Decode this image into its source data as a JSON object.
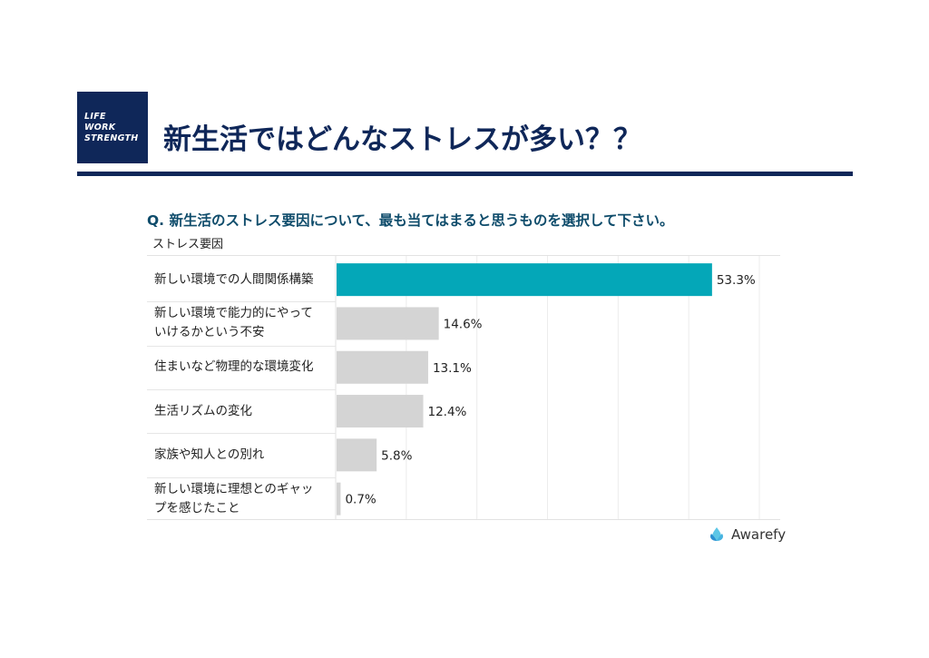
{
  "logo": {
    "lines": [
      "LIFE",
      "WORK",
      "STRENGTH"
    ]
  },
  "title": "新生活ではどんなストレスが多い？？",
  "question": "Q. 新生活のストレス要因について、最も当てはまると思うものを選択して下さい。",
  "chart_data": {
    "type": "bar",
    "orientation": "horizontal",
    "column_header": "ストレス要因",
    "categories": [
      "新しい環境での人間関係構築",
      "新しい環境で能力的にやって\nいけるかという不安",
      "住まいなど物理的な環境変化",
      "生活リズムの変化",
      "家族や知人との別れ",
      "新しい環境に理想とのギャッ\nプを感じたこと"
    ],
    "values": [
      53.3,
      14.6,
      13.1,
      12.4,
      5.8,
      0.7
    ],
    "value_labels": [
      "53.3%",
      "14.6%",
      "13.1%",
      "12.4%",
      "5.8%",
      "0.7%"
    ],
    "unit": "%",
    "xlim": [
      0,
      60
    ],
    "grid": true,
    "colors": {
      "highlight": "#04a7b8",
      "default": "#d4d4d4"
    }
  },
  "brand": {
    "name": "Awarefy",
    "icon": "awarefy-logo-mark",
    "color": "#2aa9c9"
  }
}
